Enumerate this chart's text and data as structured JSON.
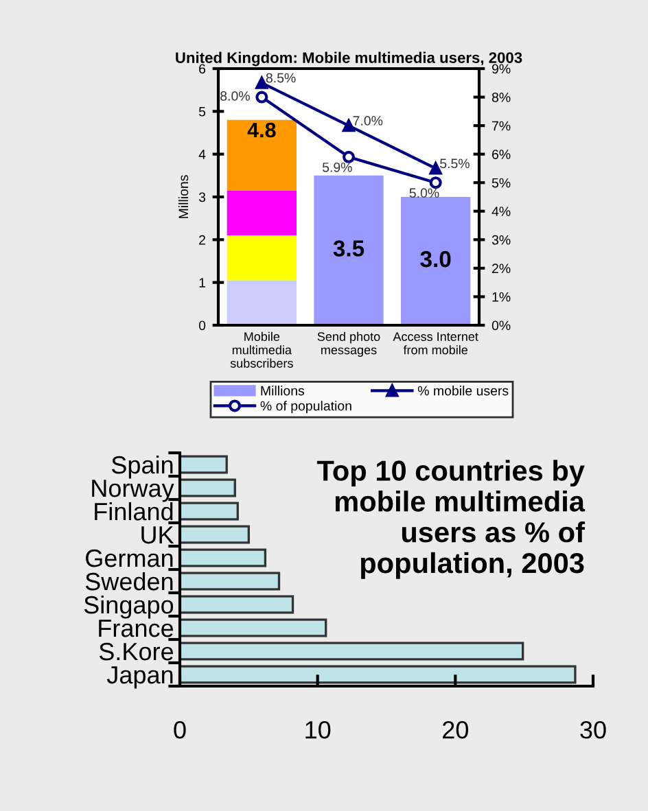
{
  "chart_data": [
    {
      "type": "bar",
      "title": "United Kingdom: Mobile multimedia users, 2003",
      "ylabel": "Millions",
      "stacked": true,
      "categories": [
        "Mobile\nmultimedia\nsubscribers",
        "Send photo\nmessages",
        "Access Internet\nfrom mobile"
      ],
      "series": [
        {
          "color": "#ccccff",
          "values": [
            1.05,
            null,
            null
          ]
        },
        {
          "color": "#ffff00",
          "values": [
            1.05,
            null,
            null
          ]
        },
        {
          "color": "#ff00ff",
          "values": [
            1.05,
            null,
            null
          ]
        },
        {
          "color": "#ff9900",
          "values": [
            1.65,
            null,
            null
          ]
        },
        {
          "name": "Millions",
          "color": "#9999ff",
          "values": [
            null,
            3.5,
            3.0
          ],
          "value_labels": [
            null,
            "3.5",
            "3.0"
          ]
        },
        {
          "name": "% of population",
          "type": "line",
          "axis": "y2",
          "marker": "circle",
          "color": "#000080",
          "values": [
            8.0,
            5.9,
            5.0
          ],
          "value_labels": [
            "8.0%",
            "5.9%",
            "5.0%"
          ]
        },
        {
          "name": "% mobile users",
          "type": "line",
          "axis": "y2",
          "marker": "triangle",
          "color": "#000080",
          "values": [
            8.5,
            7.0,
            5.5
          ],
          "value_labels": [
            "8.5%",
            "7.0%",
            "5.5%"
          ]
        }
      ],
      "totals": [
        "4.8",
        null,
        null
      ],
      "ylim": [
        0,
        6
      ],
      "yticks": [
        0,
        1,
        2,
        3,
        4,
        5,
        6
      ],
      "y2lim": [
        0,
        9
      ],
      "y2ticks": [
        {
          "value": 0,
          "label": "0%"
        },
        {
          "value": 1,
          "label": "1%"
        },
        {
          "value": 2,
          "label": "2%"
        },
        {
          "value": 3,
          "label": "3%"
        },
        {
          "value": 4,
          "label": "4%"
        },
        {
          "value": 5,
          "label": "5%"
        },
        {
          "value": 6,
          "label": "6%"
        },
        {
          "value": 7,
          "label": "7%"
        },
        {
          "value": 8,
          "label": "8%"
        },
        {
          "value": 9,
          "label": "9%"
        }
      ],
      "legend": "bottom",
      "grid": false
    },
    {
      "type": "bar",
      "orientation": "horizontal",
      "title": "Top 10 countries by mobile multimedia users as % of population, 2003",
      "categories": [
        "Spain",
        "Norway",
        "Finland",
        "UK",
        "German",
        "Sweden",
        "Singapo",
        "France",
        "S.Kore",
        "Japan"
      ],
      "values": [
        3.4,
        4.0,
        4.2,
        5.0,
        6.2,
        7.2,
        8.2,
        10.6,
        24.9,
        28.7
      ],
      "color": "#bfe3e6",
      "xlim": [
        0,
        30
      ],
      "xticks": [
        0,
        10,
        20,
        30
      ],
      "grid": false
    }
  ]
}
